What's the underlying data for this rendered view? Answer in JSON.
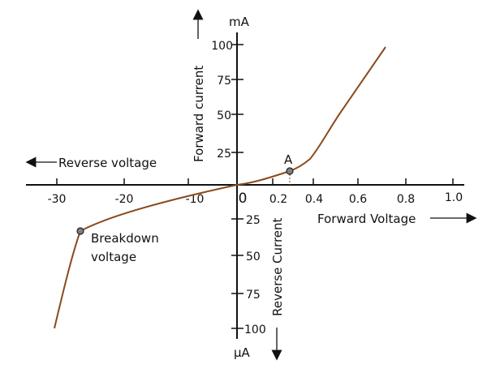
{
  "x_axis": {
    "negative_ticks": [
      "-30",
      "-20",
      "-10"
    ],
    "origin": "0",
    "positive_ticks": [
      "0.2",
      "0.4",
      "0.6",
      "0.8",
      "1.0"
    ],
    "forward_label": "Forward Voltage",
    "reverse_label": "Reverse voltage"
  },
  "y_axis": {
    "up_ticks": [
      "100",
      "75",
      "50",
      "25"
    ],
    "down_ticks": [
      "25",
      "50",
      "75",
      "100"
    ],
    "forward_label": "Forward current",
    "reverse_label": "Reverse Current",
    "up_unit": "mA",
    "down_unit": "µA"
  },
  "annotations": {
    "point_a": "A",
    "breakdown_line1": "Breakdown",
    "breakdown_line2": "voltage"
  },
  "colors": {
    "curve": "#8B4A1C",
    "axis": "#111111",
    "marker": "#808080"
  }
}
